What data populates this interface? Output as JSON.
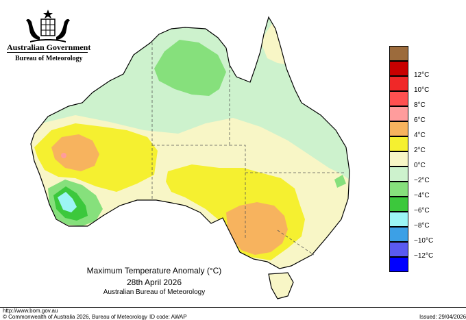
{
  "header": {
    "government": "Australian Government",
    "bureau": "Bureau of Meteorology"
  },
  "legend": {
    "items": [
      {
        "label": "",
        "color": "#9c6b3c"
      },
      {
        "label": "12°C",
        "color": "#c80000"
      },
      {
        "label": "10°C",
        "color": "#f02828"
      },
      {
        "label": "8°C",
        "color": "#ff5050"
      },
      {
        "label": "6°C",
        "color": "#ff9c9c"
      },
      {
        "label": "4°C",
        "color": "#f7b35e"
      },
      {
        "label": "2°C",
        "color": "#f5f030"
      },
      {
        "label": "0°C",
        "color": "#f8f6c6"
      },
      {
        "label": "−2°C",
        "color": "#cdf2cd"
      },
      {
        "label": "−4°C",
        "color": "#86e07c"
      },
      {
        "label": "−6°C",
        "color": "#3cc83c"
      },
      {
        "label": "−8°C",
        "color": "#9cf5f5"
      },
      {
        "label": "−10°C",
        "color": "#3ca0e6"
      },
      {
        "label": "−12°C",
        "color": "#5a5af0"
      },
      {
        "label": "",
        "color": "#0000ff"
      }
    ]
  },
  "caption": {
    "title": "Maximum Temperature Anomaly (°C)",
    "date": "28th April 2026",
    "source": "Australian Bureau of Meteorology"
  },
  "footer": {
    "url": "http://www.bom.gov.au",
    "copyright": "© Commonwealth of Australia 2026, Bureau of Meteorology",
    "id_code": "ID code: AWAP",
    "issued": "Issued: 29/04/2026"
  },
  "map": {
    "region": "Australia",
    "colors": {
      "sea": "#ffffff",
      "base": "#cdf2cd",
      "neutral": "#f8f6c6",
      "warm2": "#f5f030",
      "warm4": "#f7b35e",
      "warm6": "#ff9c9c",
      "cool4": "#86e07c",
      "cool6": "#3cc83c",
      "cool8": "#9cf5f5",
      "outline": "#000000",
      "border": "#555555"
    }
  }
}
